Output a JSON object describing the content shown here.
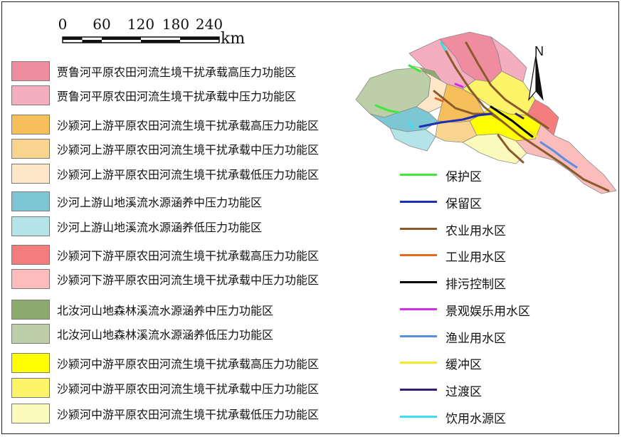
{
  "scale_bar": {
    "ticks": [
      "0",
      "60",
      "120",
      "180",
      "240"
    ],
    "unit": "km"
  },
  "north_label": "N",
  "zones": [
    {
      "label": "贾鲁河平原农田河流生境干扰承载高压力功能区",
      "color": "#f08ca0"
    },
    {
      "label": "贾鲁河平原农田河流生境干扰承载中压力功能区",
      "color": "#f4aec0"
    },
    {
      "label": "沙颍河上游平原农田河流生境干扰承载高压力功能区",
      "color": "#f6bf5a"
    },
    {
      "label": "沙颍河上游平原农田河流生境干扰承载中压力功能区",
      "color": "#f8d48e"
    },
    {
      "label": "沙颍河上游平原农田河流生境干扰承载低压力功能区",
      "color": "#fde7c6"
    },
    {
      "label": "沙河上游山地溪流水源涵养中压力功能区",
      "color": "#7dc6d3"
    },
    {
      "label": "沙河上游山地溪流水源涵养低压力功能区",
      "color": "#b4e3e8"
    },
    {
      "label": "沙颍河下游平原农田河流生境干扰承载高压力功能区",
      "color": "#f37d7d"
    },
    {
      "label": "沙颍河下游平原农田河流生境干扰承载中压力功能区",
      "color": "#fbbcbc"
    },
    {
      "label": "北汝河山地森林溪流水源涵养中压力功能区",
      "color": "#8caa6e"
    },
    {
      "label": "北汝河山地森林溪流水源涵养低压力功能区",
      "color": "#bccfa8"
    },
    {
      "label": "沙颍河中游平原农田河流生境干扰承载高压力功能区",
      "color": "#ffff00"
    },
    {
      "label": "沙颍河中游平原农田河流生境干扰承载中压力功能区",
      "color": "#fdf46a"
    },
    {
      "label": "沙颍河中游平原农田河流生境干扰承载低压力功能区",
      "color": "#fdfbbb"
    }
  ],
  "lines": [
    {
      "label": "保护区",
      "color": "#3ee83e"
    },
    {
      "label": "保留区",
      "color": "#1c2db8"
    },
    {
      "label": "农业用水区",
      "color": "#8b5a2b"
    },
    {
      "label": "工业用水区",
      "color": "#e36c1f"
    },
    {
      "label": "排污控制区",
      "color": "#000000"
    },
    {
      "label": "景观娱乐用水区",
      "color": "#d02ee6"
    },
    {
      "label": "渔业用水区",
      "color": "#5a8fe0"
    },
    {
      "label": "缓冲区",
      "color": "#f5e82a"
    },
    {
      "label": "过渡区",
      "color": "#3b1b7a"
    },
    {
      "label": "饮用水源区",
      "color": "#38e0f0"
    }
  ]
}
